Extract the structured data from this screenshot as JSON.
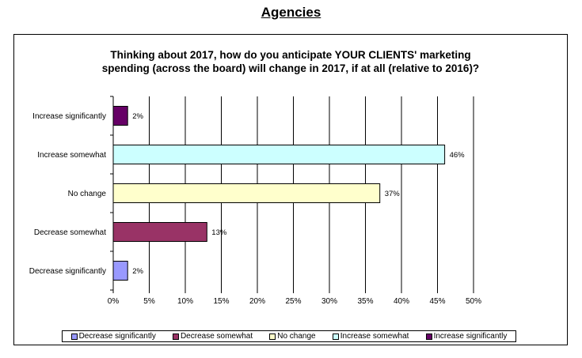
{
  "page": {
    "title": "Agencies"
  },
  "chart_data": {
    "type": "bar",
    "orientation": "horizontal",
    "title_lines": [
      "Thinking about 2017, how do you anticipate YOUR CLIENTS' marketing",
      "spending (across the board) will change in 2017, if at all (relative to 2016)?"
    ],
    "categories": [
      "Increase significantly",
      "Increase somewhat",
      "No change",
      "Decrease somewhat",
      "Decrease significantly"
    ],
    "values": [
      2,
      46,
      37,
      13,
      2
    ],
    "value_labels": [
      "2%",
      "46%",
      "37%",
      "13%",
      "2%"
    ],
    "colors": [
      "#660066",
      "#ccffff",
      "#ffffcc",
      "#993366",
      "#9999ff"
    ],
    "xlim": [
      0,
      50
    ],
    "x_ticks": [
      0,
      5,
      10,
      15,
      20,
      25,
      30,
      35,
      40,
      45,
      50
    ],
    "x_tick_labels": [
      "0%",
      "5%",
      "10%",
      "15%",
      "20%",
      "25%",
      "30%",
      "35%",
      "40%",
      "45%",
      "50%"
    ],
    "xlabel": "",
    "ylabel": "",
    "grid": "vertical",
    "legend": {
      "placement": "bottom",
      "entries": [
        {
          "label": "Decrease significantly",
          "color": "#9999ff"
        },
        {
          "label": "Decrease somewhat",
          "color": "#993366"
        },
        {
          "label": "No change",
          "color": "#ffffcc"
        },
        {
          "label": "Increase somewhat",
          "color": "#ccffff"
        },
        {
          "label": "Increase significantly",
          "color": "#660066"
        }
      ]
    }
  }
}
